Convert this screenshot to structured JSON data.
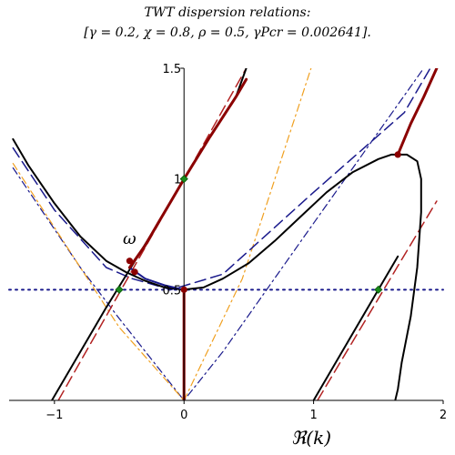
{
  "chart_data": {
    "type": "line",
    "title_line1": "TWT dispersion relations:",
    "title_line2": "[γ = 0.2, χ = 0.8, ρ = 0.5, γPcr = 0.002641].",
    "xlabel": "ℜ(k)",
    "annotation": "ω",
    "xlim": [
      -1.35,
      2.0
    ],
    "ylim": [
      0,
      1.5
    ],
    "x_ticks": [
      {
        "value": -1,
        "label": "−1"
      },
      {
        "value": 0,
        "label": "0"
      },
      {
        "value": 1,
        "label": "1"
      },
      {
        "value": 2,
        "label": "2"
      }
    ],
    "y_ticks": [
      {
        "value": 0.5,
        "label": "0.5"
      },
      {
        "value": 1,
        "label": "1"
      },
      {
        "value": 1.5,
        "label": "1.5"
      }
    ],
    "colors": {
      "black": "#000000",
      "darkred": "#8b0000",
      "red_dash": "#b22222",
      "navy": "#1a1a8c",
      "orange": "#f0a020",
      "green": "#1a8a1a"
    },
    "series": [
      {
        "id": "left-branch",
        "style": "solid",
        "color": "black",
        "points": [
          [
            -1.32,
            1.18
          ],
          [
            -1.2,
            1.06
          ],
          [
            -1.0,
            0.89
          ],
          [
            -0.8,
            0.74
          ],
          [
            -0.6,
            0.63
          ],
          [
            -0.45,
            0.58
          ],
          [
            -0.3,
            0.54
          ],
          [
            -0.15,
            0.51
          ],
          [
            0.0,
            0.5
          ],
          [
            0.15,
            0.51
          ],
          [
            0.3,
            0.55
          ],
          [
            0.5,
            0.62
          ],
          [
            0.7,
            0.72
          ],
          [
            0.9,
            0.83
          ],
          [
            1.1,
            0.94
          ],
          [
            1.3,
            1.03
          ],
          [
            1.5,
            1.09
          ],
          [
            1.6,
            1.11
          ],
          [
            1.72,
            1.11
          ],
          [
            1.8,
            1.08
          ],
          [
            1.83,
            1.0
          ],
          [
            1.83,
            0.85
          ],
          [
            1.8,
            0.6
          ],
          [
            1.75,
            0.38
          ],
          [
            1.68,
            0.17
          ],
          [
            1.65,
            0.05
          ],
          [
            1.63,
            0.0
          ]
        ]
      },
      {
        "id": "upper-line",
        "style": "solid",
        "color": "black",
        "points": [
          [
            -1.02,
            0.0
          ],
          [
            -0.6,
            0.42
          ],
          [
            -0.4,
            0.61
          ],
          [
            -0.2,
            0.8
          ],
          [
            0.0,
            1.0
          ],
          [
            0.2,
            1.19
          ],
          [
            0.4,
            1.37
          ],
          [
            0.48,
            1.5
          ]
        ]
      },
      {
        "id": "right-line",
        "style": "solid",
        "color": "black",
        "points": [
          [
            1.0,
            0.0
          ],
          [
            1.5,
            0.5
          ],
          [
            1.65,
            0.65
          ]
        ]
      },
      {
        "id": "navy-dash",
        "style": "dash",
        "color": "navy",
        "points": [
          [
            -1.32,
            1.14
          ],
          [
            -1.0,
            0.86
          ],
          [
            -0.6,
            0.6
          ],
          [
            -0.4,
            0.55
          ],
          [
            -0.1,
            0.5
          ],
          [
            0.3,
            0.57
          ],
          [
            1.0,
            0.94
          ],
          [
            1.7,
            1.3
          ],
          [
            1.9,
            1.5
          ]
        ]
      },
      {
        "id": "navy-dashdot",
        "style": "dashdot",
        "color": "navy",
        "points": [
          [
            -1.32,
            1.05
          ],
          [
            -0.8,
            0.6
          ],
          [
            -0.5,
            0.37
          ],
          [
            0.0,
            0.0
          ],
          [
            0.3,
            0.22
          ],
          [
            1.0,
            0.8
          ],
          [
            1.85,
            1.5
          ]
        ]
      },
      {
        "id": "orange-dashdot-left",
        "style": "dashdot",
        "color": "orange",
        "points": [
          [
            -1.32,
            1.07
          ],
          [
            -0.8,
            0.6
          ],
          [
            -0.5,
            0.33
          ],
          [
            0.0,
            0.0
          ]
        ]
      },
      {
        "id": "orange-dashdot-right",
        "style": "dashdot",
        "color": "orange",
        "points": [
          [
            0.0,
            0.0
          ],
          [
            0.45,
            0.55
          ],
          [
            0.98,
            1.5
          ]
        ]
      },
      {
        "id": "red-dash-upper",
        "style": "dash",
        "color": "red_dash",
        "points": [
          [
            -0.97,
            0.0
          ],
          [
            0.0,
            1.0
          ],
          [
            0.48,
            1.5
          ]
        ]
      },
      {
        "id": "red-dash-right",
        "style": "dash",
        "color": "red_dash",
        "points": [
          [
            1.03,
            0.0
          ],
          [
            1.5,
            0.46
          ],
          [
            1.95,
            0.9
          ]
        ]
      },
      {
        "id": "red-thick-left",
        "style": "thick",
        "color": "darkred",
        "points": [
          [
            -0.42,
            0.6
          ],
          [
            -0.3,
            0.7
          ],
          [
            -0.2,
            0.8
          ],
          [
            -0.1,
            0.9
          ],
          [
            0.0,
            1.0
          ],
          [
            0.2,
            1.19
          ],
          [
            0.4,
            1.37
          ],
          [
            0.48,
            1.45
          ]
        ]
      },
      {
        "id": "red-thick-vertical",
        "style": "thick",
        "color": "darkred",
        "points": [
          [
            0.0,
            0.5
          ],
          [
            0.0,
            0.0
          ]
        ]
      },
      {
        "id": "red-thick-right",
        "style": "thick",
        "color": "darkred",
        "points": [
          [
            1.65,
            1.11
          ],
          [
            1.75,
            1.25
          ],
          [
            1.85,
            1.37
          ],
          [
            1.95,
            1.5
          ]
        ]
      },
      {
        "id": "navy-dip",
        "style": "solid",
        "color": "navy",
        "points": [
          [
            -0.42,
            0.6
          ],
          [
            -0.3,
            0.55
          ],
          [
            -0.15,
            0.52
          ],
          [
            0.0,
            0.5
          ]
        ]
      }
    ],
    "hline": {
      "y": 0.5,
      "style": "dotted",
      "color": "navy"
    },
    "markers": [
      {
        "x": -0.42,
        "y": 0.63,
        "color": "darkred"
      },
      {
        "x": -0.38,
        "y": 0.58,
        "color": "darkred"
      },
      {
        "x": 0.0,
        "y": 0.5,
        "color": "darkred"
      },
      {
        "x": 1.65,
        "y": 1.11,
        "color": "darkred"
      },
      {
        "x": -0.5,
        "y": 0.5,
        "color": "green"
      },
      {
        "x": 0.0,
        "y": 1.0,
        "color": "green"
      },
      {
        "x": 1.5,
        "y": 0.5,
        "color": "green"
      }
    ],
    "grid": false
  }
}
